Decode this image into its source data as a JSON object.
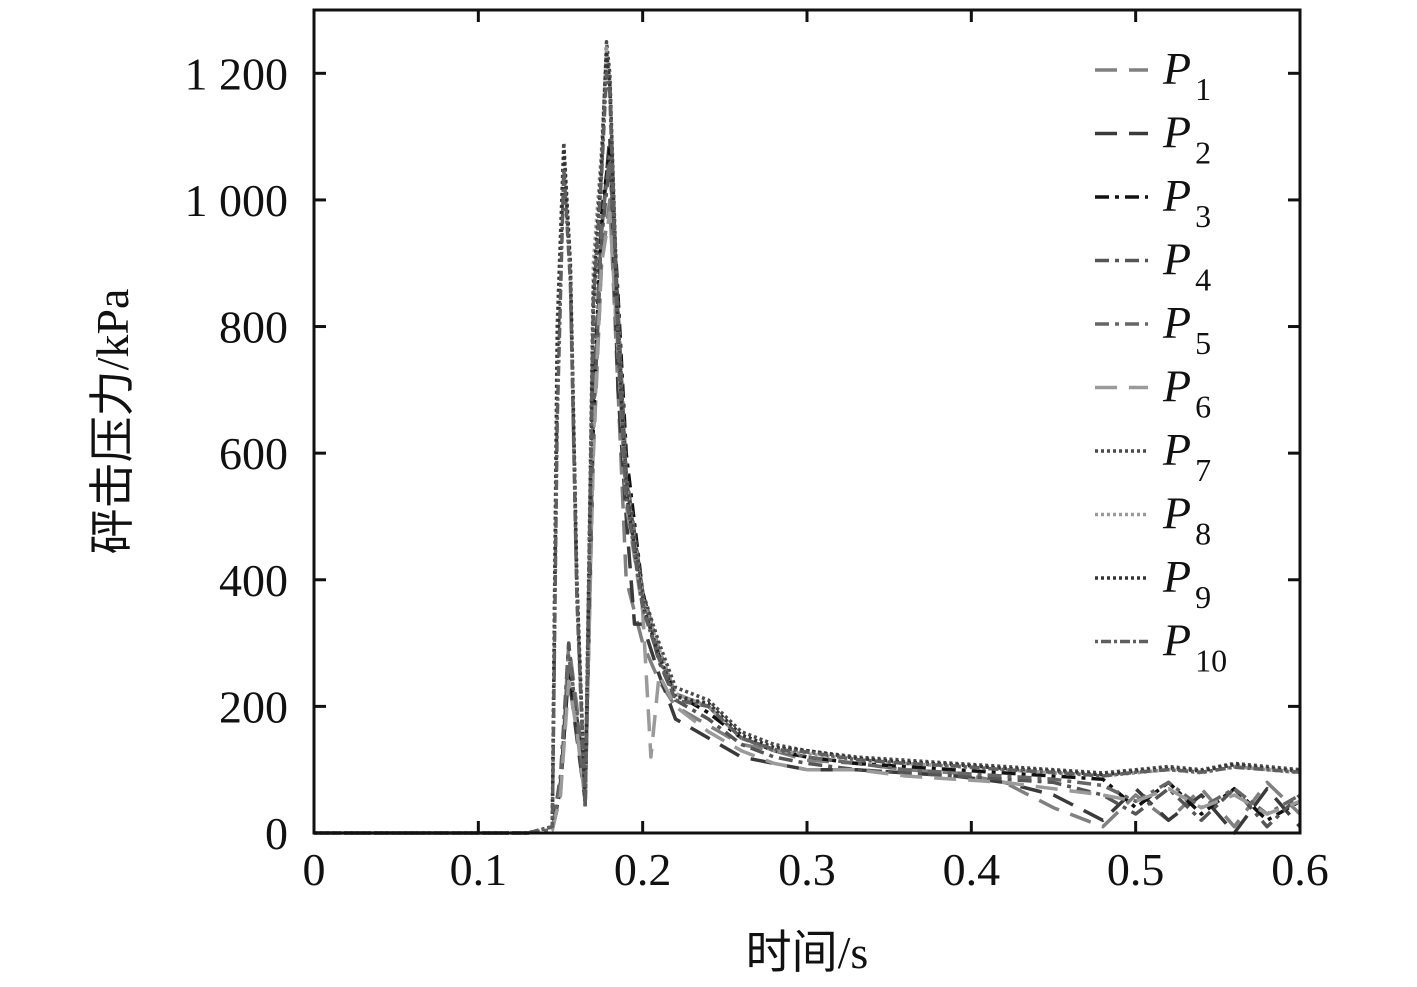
{
  "chart_data": {
    "type": "line",
    "xlabel": "时间/s",
    "ylabel": "砰击压力/kPa",
    "xlim": [
      0,
      0.6
    ],
    "ylim": [
      0,
      1300
    ],
    "xticks": [
      0,
      0.1,
      0.2,
      0.3,
      0.4,
      0.5,
      0.6
    ],
    "xtick_labels": [
      "0",
      "0.1",
      "0.2",
      "0.3",
      "0.4",
      "0.5",
      "0.6"
    ],
    "yticks": [
      0,
      200,
      400,
      600,
      800,
      1000,
      1200
    ],
    "ytick_labels": [
      "0",
      "200",
      "400",
      "600",
      "800",
      "1 000",
      "1 200"
    ],
    "grid": false,
    "legend_position": "top-right",
    "series": [
      {
        "name": "P",
        "subscript": "1",
        "color": "#808080",
        "dash": "22,12",
        "x": [
          0,
          0.13,
          0.145,
          0.15,
          0.155,
          0.16,
          0.165,
          0.17,
          0.175,
          0.18,
          0.185,
          0.19,
          0.2,
          0.21,
          0.22,
          0.24,
          0.26,
          0.28,
          0.3,
          0.33,
          0.36,
          0.39,
          0.42,
          0.45,
          0.48,
          0.5,
          0.52,
          0.54,
          0.56,
          0.58,
          0.6
        ],
        "y": [
          0,
          0,
          5,
          60,
          300,
          200,
          60,
          600,
          900,
          1000,
          700,
          400,
          300,
          240,
          200,
          170,
          140,
          130,
          115,
          110,
          100,
          95,
          80,
          40,
          10,
          60,
          20,
          70,
          10,
          80,
          30
        ]
      },
      {
        "name": "P",
        "subscript": "2",
        "color": "#3a3a3a",
        "dash": "22,12",
        "x": [
          0,
          0.13,
          0.145,
          0.15,
          0.155,
          0.16,
          0.165,
          0.17,
          0.175,
          0.18,
          0.185,
          0.19,
          0.195,
          0.2,
          0.21,
          0.22,
          0.24,
          0.26,
          0.28,
          0.3,
          0.33,
          0.36,
          0.39,
          0.42,
          0.45,
          0.48,
          0.5,
          0.52,
          0.54,
          0.56,
          0.58,
          0.6
        ],
        "y": [
          0,
          0,
          5,
          80,
          250,
          150,
          50,
          700,
          950,
          1100,
          700,
          500,
          330,
          330,
          250,
          180,
          150,
          120,
          110,
          100,
          100,
          95,
          90,
          80,
          60,
          20,
          70,
          20,
          60,
          0,
          70,
          10
        ]
      },
      {
        "name": "P",
        "subscript": "3",
        "color": "#111111",
        "dash": "14,6,4,6",
        "x": [
          0,
          0.13,
          0.145,
          0.15,
          0.155,
          0.16,
          0.165,
          0.17,
          0.175,
          0.18,
          0.185,
          0.19,
          0.2,
          0.21,
          0.22,
          0.24,
          0.26,
          0.28,
          0.3,
          0.33,
          0.36,
          0.39,
          0.42,
          0.45,
          0.48,
          0.5,
          0.52,
          0.54,
          0.56,
          0.58,
          0.6
        ],
        "y": [
          0,
          0,
          5,
          70,
          260,
          180,
          60,
          650,
          980,
          1080,
          850,
          600,
          380,
          280,
          220,
          190,
          150,
          130,
          120,
          110,
          105,
          100,
          95,
          90,
          85,
          40,
          80,
          30,
          70,
          20,
          50
        ]
      },
      {
        "name": "P",
        "subscript": "4",
        "color": "#555555",
        "dash": "14,6,4,6",
        "x": [
          0,
          0.13,
          0.145,
          0.15,
          0.155,
          0.16,
          0.165,
          0.17,
          0.175,
          0.18,
          0.185,
          0.19,
          0.2,
          0.21,
          0.22,
          0.24,
          0.26,
          0.28,
          0.3,
          0.33,
          0.36,
          0.39,
          0.42,
          0.45,
          0.48,
          0.5,
          0.52,
          0.54,
          0.56,
          0.58,
          0.6
        ],
        "y": [
          0,
          0,
          5,
          90,
          300,
          170,
          50,
          640,
          940,
          1060,
          820,
          560,
          370,
          270,
          210,
          180,
          140,
          120,
          110,
          100,
          95,
          90,
          85,
          80,
          60,
          30,
          70,
          20,
          70,
          10,
          60
        ]
      },
      {
        "name": "P",
        "subscript": "5",
        "color": "#666666",
        "dash": "14,6,4,6",
        "x": [
          0,
          0.13,
          0.145,
          0.15,
          0.155,
          0.16,
          0.165,
          0.17,
          0.175,
          0.18,
          0.185,
          0.19,
          0.2,
          0.21,
          0.22,
          0.24,
          0.26,
          0.28,
          0.3,
          0.33,
          0.36,
          0.39,
          0.42,
          0.45,
          0.48,
          0.5,
          0.52,
          0.54,
          0.56,
          0.58,
          0.6
        ],
        "y": [
          0,
          0,
          5,
          80,
          280,
          190,
          60,
          660,
          960,
          1070,
          830,
          570,
          380,
          290,
          220,
          200,
          150,
          130,
          120,
          110,
          100,
          95,
          90,
          85,
          75,
          50,
          80,
          40,
          70,
          30,
          60
        ]
      },
      {
        "name": "P",
        "subscript": "6",
        "color": "#9a9a9a",
        "dash": "22,12",
        "x": [
          0,
          0.13,
          0.145,
          0.15,
          0.155,
          0.16,
          0.165,
          0.17,
          0.175,
          0.18,
          0.185,
          0.19,
          0.2,
          0.205,
          0.21,
          0.22,
          0.24,
          0.26,
          0.28,
          0.3,
          0.33,
          0.36,
          0.39,
          0.42,
          0.45,
          0.48,
          0.5,
          0.52,
          0.54,
          0.56,
          0.58,
          0.6
        ],
        "y": [
          0,
          0,
          5,
          60,
          240,
          160,
          50,
          620,
          900,
          980,
          760,
          520,
          350,
          120,
          250,
          200,
          160,
          130,
          110,
          100,
          100,
          90,
          85,
          80,
          70,
          60,
          50,
          70,
          40,
          60,
          30,
          50
        ]
      },
      {
        "name": "P",
        "subscript": "7",
        "color": "#4a4a4a",
        "dash": "3,3",
        "x": [
          0,
          0.13,
          0.145,
          0.148,
          0.152,
          0.156,
          0.16,
          0.165,
          0.17,
          0.175,
          0.178,
          0.18,
          0.185,
          0.19,
          0.2,
          0.21,
          0.22,
          0.24,
          0.26,
          0.28,
          0.3,
          0.33,
          0.36,
          0.39,
          0.42,
          0.45,
          0.48,
          0.5,
          0.52,
          0.54,
          0.56,
          0.58,
          0.6
        ],
        "y": [
          0,
          0,
          10,
          800,
          1090,
          900,
          400,
          40,
          820,
          1050,
          1250,
          1200,
          800,
          560,
          380,
          300,
          230,
          210,
          160,
          140,
          130,
          120,
          115,
          110,
          105,
          100,
          95,
          100,
          105,
          100,
          110,
          105,
          100
        ]
      },
      {
        "name": "P",
        "subscript": "8",
        "color": "#999999",
        "dash": "3,3",
        "x": [
          0,
          0.13,
          0.145,
          0.148,
          0.152,
          0.156,
          0.16,
          0.165,
          0.17,
          0.175,
          0.178,
          0.18,
          0.185,
          0.19,
          0.2,
          0.21,
          0.22,
          0.24,
          0.26,
          0.28,
          0.3,
          0.33,
          0.36,
          0.39,
          0.42,
          0.45,
          0.48,
          0.5,
          0.52,
          0.54,
          0.56,
          0.58,
          0.6
        ],
        "y": [
          0,
          0,
          10,
          700,
          1070,
          880,
          380,
          50,
          900,
          1080,
          1240,
          1190,
          790,
          550,
          370,
          290,
          220,
          200,
          150,
          130,
          125,
          115,
          110,
          105,
          100,
          95,
          90,
          95,
          100,
          95,
          105,
          100,
          95
        ]
      },
      {
        "name": "P",
        "subscript": "9",
        "color": "#333333",
        "dash": "3,3",
        "x": [
          0,
          0.13,
          0.145,
          0.148,
          0.152,
          0.156,
          0.16,
          0.165,
          0.17,
          0.175,
          0.178,
          0.18,
          0.185,
          0.19,
          0.2,
          0.21,
          0.22,
          0.24,
          0.26,
          0.28,
          0.3,
          0.33,
          0.36,
          0.39,
          0.42,
          0.45,
          0.48,
          0.5,
          0.52,
          0.54,
          0.56,
          0.58,
          0.6
        ],
        "y": [
          0,
          0,
          10,
          750,
          1080,
          890,
          390,
          45,
          860,
          1060,
          1230,
          1180,
          780,
          540,
          360,
          280,
          215,
          205,
          155,
          135,
          130,
          118,
          112,
          108,
          102,
          98,
          92,
          98,
          102,
          98,
          108,
          102,
          98
        ]
      },
      {
        "name": "P",
        "subscript": "10",
        "color": "#5f5f5f",
        "dash": "3,3,10,3",
        "x": [
          0,
          0.13,
          0.145,
          0.148,
          0.152,
          0.156,
          0.16,
          0.165,
          0.17,
          0.175,
          0.178,
          0.18,
          0.185,
          0.19,
          0.2,
          0.21,
          0.22,
          0.24,
          0.26,
          0.28,
          0.3,
          0.33,
          0.36,
          0.39,
          0.42,
          0.45,
          0.48,
          0.5,
          0.52,
          0.54,
          0.56,
          0.58,
          0.6
        ],
        "y": [
          0,
          0,
          10,
          650,
          1050,
          870,
          370,
          40,
          840,
          1040,
          1200,
          1170,
          770,
          530,
          355,
          275,
          210,
          200,
          150,
          132,
          128,
          116,
          110,
          106,
          100,
          96,
          90,
          96,
          100,
          96,
          104,
          100,
          96
        ]
      }
    ]
  }
}
